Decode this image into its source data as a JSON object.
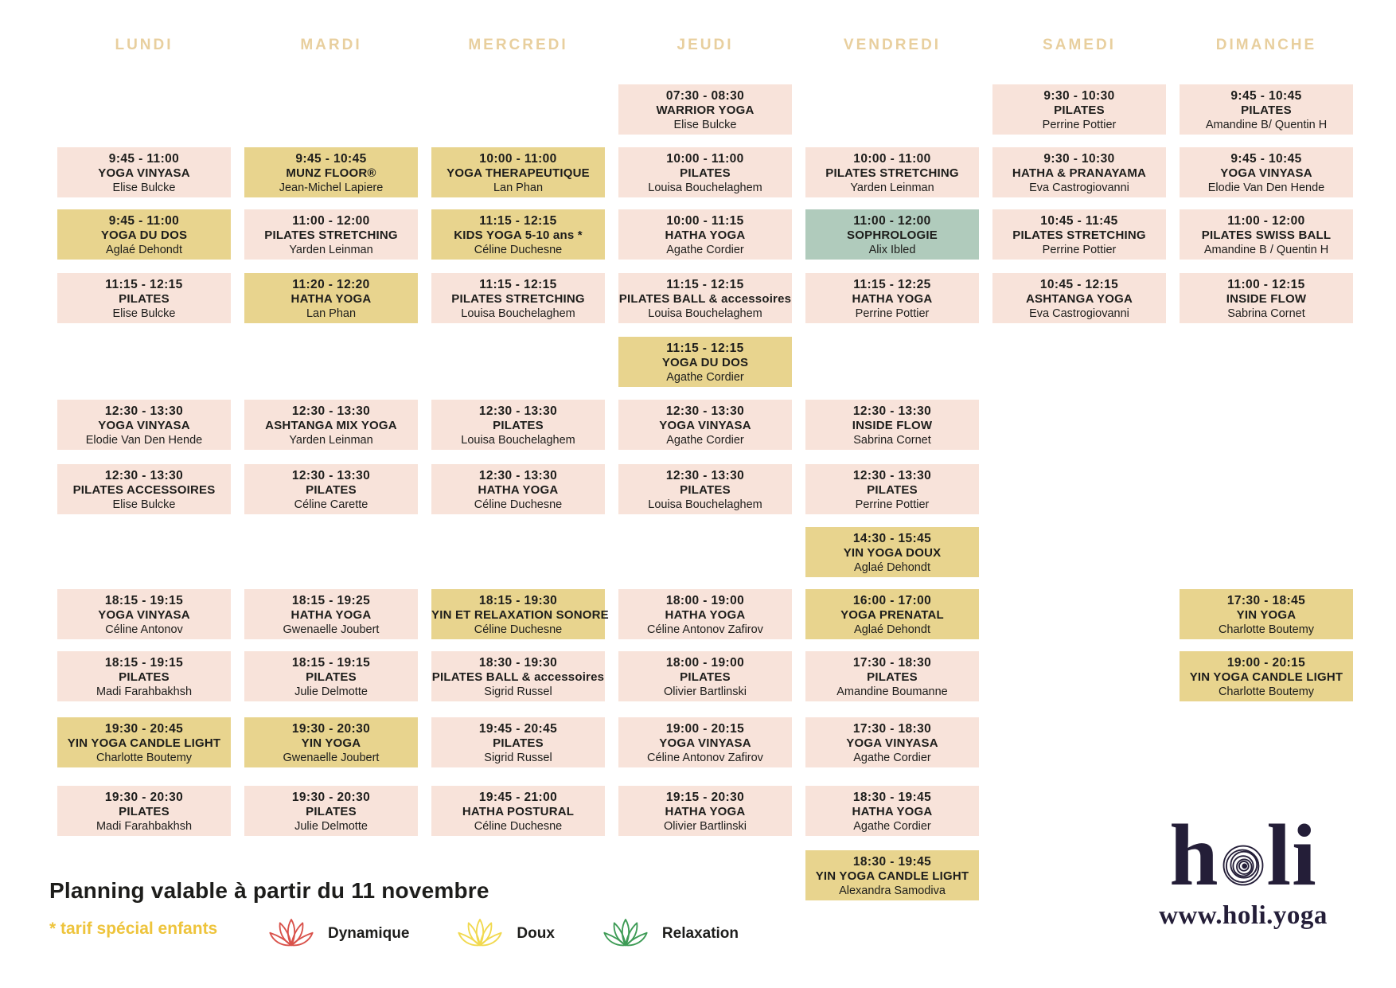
{
  "colors": {
    "pink": "#f8e3da",
    "yellow": "#e8d48e",
    "green": "#b0cbbc",
    "header_text": "#e8cf9e",
    "card_text": "#1d1d1b",
    "accent_gold": "#eec43c",
    "logo": "#241e38"
  },
  "days": [
    {
      "label": "LUNDI",
      "classes": [
        {
          "time": "9:45 - 11:00",
          "title": "YOGA VINYASA",
          "teacher": "Elise Bulcke",
          "tone": "pink",
          "row": 1
        },
        {
          "time": "9:45 - 11:00",
          "title": "YOGA DU DOS",
          "teacher": "Aglaé Dehondt",
          "tone": "yellow",
          "row": 2
        },
        {
          "time": "11:15 - 12:15",
          "title": "PILATES",
          "teacher": "Elise Bulcke",
          "tone": "pink",
          "row": 3
        },
        {
          "time": "12:30 - 13:30",
          "title": "YOGA VINYASA",
          "teacher": "Elodie Van Den Hende",
          "tone": "pink",
          "row": 5
        },
        {
          "time": "12:30 - 13:30",
          "title": "PILATES ACCESSOIRES",
          "teacher": "Elise Bulcke",
          "tone": "pink",
          "row": 6
        },
        {
          "time": "18:15 - 19:15",
          "title": "YOGA VINYASA",
          "teacher": "Céline Antonov",
          "tone": "pink",
          "row": 8
        },
        {
          "time": "18:15 - 19:15",
          "title": "PILATES",
          "teacher": "Madi Farahbakhsh",
          "tone": "pink",
          "row": 9
        },
        {
          "time": "19:30 - 20:45",
          "title": "YIN YOGA CANDLE LIGHT",
          "teacher": "Charlotte Boutemy",
          "tone": "yellow",
          "row": 10
        },
        {
          "time": "19:30 - 20:30",
          "title": "PILATES",
          "teacher": "Madi Farahbakhsh",
          "tone": "pink",
          "row": 11
        }
      ]
    },
    {
      "label": "MARDI",
      "classes": [
        {
          "time": "9:45 - 10:45",
          "title": "MUNZ FLOOR®",
          "teacher": "Jean-Michel Lapiere",
          "tone": "yellow",
          "row": 1
        },
        {
          "time": "11:00 - 12:00",
          "title": "PILATES STRETCHING",
          "teacher": "Yarden Leinman",
          "tone": "pink",
          "row": 2
        },
        {
          "time": "11:20 - 12:20",
          "title": "HATHA YOGA",
          "teacher": "Lan Phan",
          "tone": "yellow",
          "row": 3
        },
        {
          "time": "12:30 - 13:30",
          "title": "ASHTANGA MIX YOGA",
          "teacher": "Yarden Leinman",
          "tone": "pink",
          "row": 5
        },
        {
          "time": "12:30 - 13:30",
          "title": "PILATES",
          "teacher": "Céline Carette",
          "tone": "pink",
          "row": 6
        },
        {
          "time": "18:15 - 19:25",
          "title": "HATHA YOGA",
          "teacher": "Gwenaelle Joubert",
          "tone": "pink",
          "row": 8
        },
        {
          "time": "18:15 - 19:15",
          "title": "PILATES",
          "teacher": "Julie Delmotte",
          "tone": "pink",
          "row": 9
        },
        {
          "time": "19:30 - 20:30",
          "title": "YIN YOGA",
          "teacher": "Gwenaelle Joubert",
          "tone": "yellow",
          "row": 10
        },
        {
          "time": "19:30 - 20:30",
          "title": "PILATES",
          "teacher": "Julie Delmotte",
          "tone": "pink",
          "row": 11
        }
      ]
    },
    {
      "label": "MERCREDI",
      "classes": [
        {
          "time": "10:00 - 11:00",
          "title": "YOGA THERAPEUTIQUE",
          "teacher": "Lan Phan",
          "tone": "yellow",
          "row": 1
        },
        {
          "time": "11:15 - 12:15",
          "title": "KIDS YOGA 5-10 ans *",
          "teacher": "Céline Duchesne",
          "tone": "yellow",
          "row": 2
        },
        {
          "time": "11:15 - 12:15",
          "title": "PILATES STRETCHING",
          "teacher": "Louisa Bouchelaghem",
          "tone": "pink",
          "row": 3
        },
        {
          "time": "12:30 - 13:30",
          "title": "PILATES",
          "teacher": "Louisa Bouchelaghem",
          "tone": "pink",
          "row": 5
        },
        {
          "time": "12:30 - 13:30",
          "title": "HATHA YOGA",
          "teacher": "Céline Duchesne",
          "tone": "pink",
          "row": 6
        },
        {
          "time": "18:15 - 19:30",
          "title": "YIN ET RELAXATION SONORE",
          "teacher": "Céline Duchesne",
          "tone": "yellow",
          "row": 8
        },
        {
          "time": "18:30 - 19:30",
          "title": "PILATES BALL & accessoires",
          "teacher": "Sigrid Russel",
          "tone": "pink",
          "row": 9
        },
        {
          "time": "19:45 - 20:45",
          "title": "PILATES",
          "teacher": "Sigrid Russel",
          "tone": "pink",
          "row": 10
        },
        {
          "time": "19:45 - 21:00",
          "title": "HATHA POSTURAL",
          "teacher": "Céline Duchesne",
          "tone": "pink",
          "row": 11
        }
      ]
    },
    {
      "label": "JEUDI",
      "classes": [
        {
          "time": "07:30 - 08:30",
          "title": "WARRIOR YOGA",
          "teacher": "Elise Bulcke",
          "tone": "pink",
          "row": 0
        },
        {
          "time": "10:00 - 11:00",
          "title": "PILATES",
          "teacher": "Louisa Bouchelaghem",
          "tone": "pink",
          "row": 1
        },
        {
          "time": "10:00 - 11:15",
          "title": "HATHA YOGA",
          "teacher": "Agathe Cordier",
          "tone": "pink",
          "row": 2
        },
        {
          "time": "11:15 - 12:15",
          "title": "PILATES BALL & accessoires",
          "teacher": "Louisa Bouchelaghem",
          "tone": "pink",
          "row": 3
        },
        {
          "time": "11:15 - 12:15",
          "title": "YOGA DU DOS",
          "teacher": "Agathe Cordier",
          "tone": "yellow",
          "row": 4
        },
        {
          "time": "12:30 - 13:30",
          "title": "YOGA VINYASA",
          "teacher": "Agathe Cordier",
          "tone": "pink",
          "row": 5
        },
        {
          "time": "12:30 - 13:30",
          "title": "PILATES",
          "teacher": "Louisa Bouchelaghem",
          "tone": "pink",
          "row": 6
        },
        {
          "time": "18:00 - 19:00",
          "title": "HATHA YOGA",
          "teacher": "Céline Antonov Zafirov",
          "tone": "pink",
          "row": 8
        },
        {
          "time": "18:00 - 19:00",
          "title": "PILATES",
          "teacher": "Olivier Bartlinski",
          "tone": "pink",
          "row": 9
        },
        {
          "time": "19:00 - 20:15",
          "title": "YOGA VINYASA",
          "teacher": "Céline Antonov Zafirov",
          "tone": "pink",
          "row": 10
        },
        {
          "time": "19:15 - 20:30",
          "title": "HATHA YOGA",
          "teacher": "Olivier Bartlinski",
          "tone": "pink",
          "row": 11
        }
      ]
    },
    {
      "label": "VENDREDI",
      "classes": [
        {
          "time": "10:00 - 11:00",
          "title": "PILATES STRETCHING",
          "teacher": "Yarden Leinman",
          "tone": "pink",
          "row": 1
        },
        {
          "time": "11:00 - 12:00",
          "title": "SOPHROLOGIE",
          "teacher": "Alix Ibled",
          "tone": "green",
          "row": 2
        },
        {
          "time": "11:15 - 12:25",
          "title": "HATHA YOGA",
          "teacher": "Perrine Pottier",
          "tone": "pink",
          "row": 3
        },
        {
          "time": "12:30 - 13:30",
          "title": "INSIDE FLOW",
          "teacher": "Sabrina Cornet",
          "tone": "pink",
          "row": 5
        },
        {
          "time": "12:30 - 13:30",
          "title": "PILATES",
          "teacher": "Perrine Pottier",
          "tone": "pink",
          "row": 6
        },
        {
          "time": "14:30 - 15:45",
          "title": "YIN YOGA DOUX",
          "teacher": "Aglaé Dehondt",
          "tone": "yellow",
          "row": 7
        },
        {
          "time": "16:00 - 17:00",
          "title": "YOGA PRENATAL",
          "teacher": "Aglaé Dehondt",
          "tone": "yellow",
          "row": 8
        },
        {
          "time": "17:30 - 18:30",
          "title": "PILATES",
          "teacher": "Amandine Boumanne",
          "tone": "pink",
          "row": 9
        },
        {
          "time": "17:30 - 18:30",
          "title": "YOGA VINYASA",
          "teacher": "Agathe Cordier",
          "tone": "pink",
          "row": 10
        },
        {
          "time": "18:30 - 19:45",
          "title": "HATHA YOGA",
          "teacher": "Agathe Cordier",
          "tone": "pink",
          "row": 11
        },
        {
          "time": "18:30 - 19:45",
          "title": "YIN YOGA CANDLE LIGHT",
          "teacher": "Alexandra Samodiva",
          "tone": "yellow",
          "row": 12
        }
      ]
    },
    {
      "label": "SAMEDI",
      "classes": [
        {
          "time": "9:30 - 10:30",
          "title": "PILATES",
          "teacher": "Perrine Pottier",
          "tone": "pink",
          "row": 0
        },
        {
          "time": "9:30 - 10:30",
          "title": "HATHA & PRANAYAMA",
          "teacher": "Eva Castrogiovanni",
          "tone": "pink",
          "row": 1
        },
        {
          "time": "10:45 - 11:45",
          "title": "PILATES STRETCHING",
          "teacher": "Perrine Pottier",
          "tone": "pink",
          "row": 2
        },
        {
          "time": "10:45 - 12:15",
          "title": "ASHTANGA YOGA",
          "teacher": "Eva Castrogiovanni",
          "tone": "pink",
          "row": 3
        }
      ]
    },
    {
      "label": "DIMANCHE",
      "classes": [
        {
          "time": "9:45 - 10:45",
          "title": "PILATES",
          "teacher": "Amandine B/ Quentin H",
          "tone": "pink",
          "row": 0
        },
        {
          "time": "9:45 - 10:45",
          "title": "YOGA VINYASA",
          "teacher": "Elodie Van Den Hende",
          "tone": "pink",
          "row": 1
        },
        {
          "time": "11:00 - 12:00",
          "title": "PILATES SWISS BALL",
          "teacher": "Amandine B / Quentin H",
          "tone": "pink",
          "row": 2
        },
        {
          "time": "11:00 - 12:15",
          "title": "INSIDE FLOW",
          "teacher": "Sabrina Cornet",
          "tone": "pink",
          "row": 3
        },
        {
          "time": "17:30 - 18:45",
          "title": "YIN YOGA",
          "teacher": "Charlotte Boutemy",
          "tone": "yellow",
          "row": 8
        },
        {
          "time": "19:00 - 20:15",
          "title": "YIN YOGA CANDLE LIGHT",
          "teacher": "Charlotte Boutemy",
          "tone": "yellow",
          "row": 9
        }
      ]
    }
  ],
  "footer": {
    "validity_note": "Planning valable à partir du 11 novembre",
    "children_note": "* tarif spécial enfants",
    "legend": [
      {
        "label": "Dynamique",
        "color": "#d9524b"
      },
      {
        "label": "Doux",
        "color": "#f1d94f"
      },
      {
        "label": "Relaxation",
        "color": "#3d9b55"
      }
    ],
    "logo_text_left": "h",
    "logo_text_right": "li",
    "website": "www.holi.yoga"
  }
}
